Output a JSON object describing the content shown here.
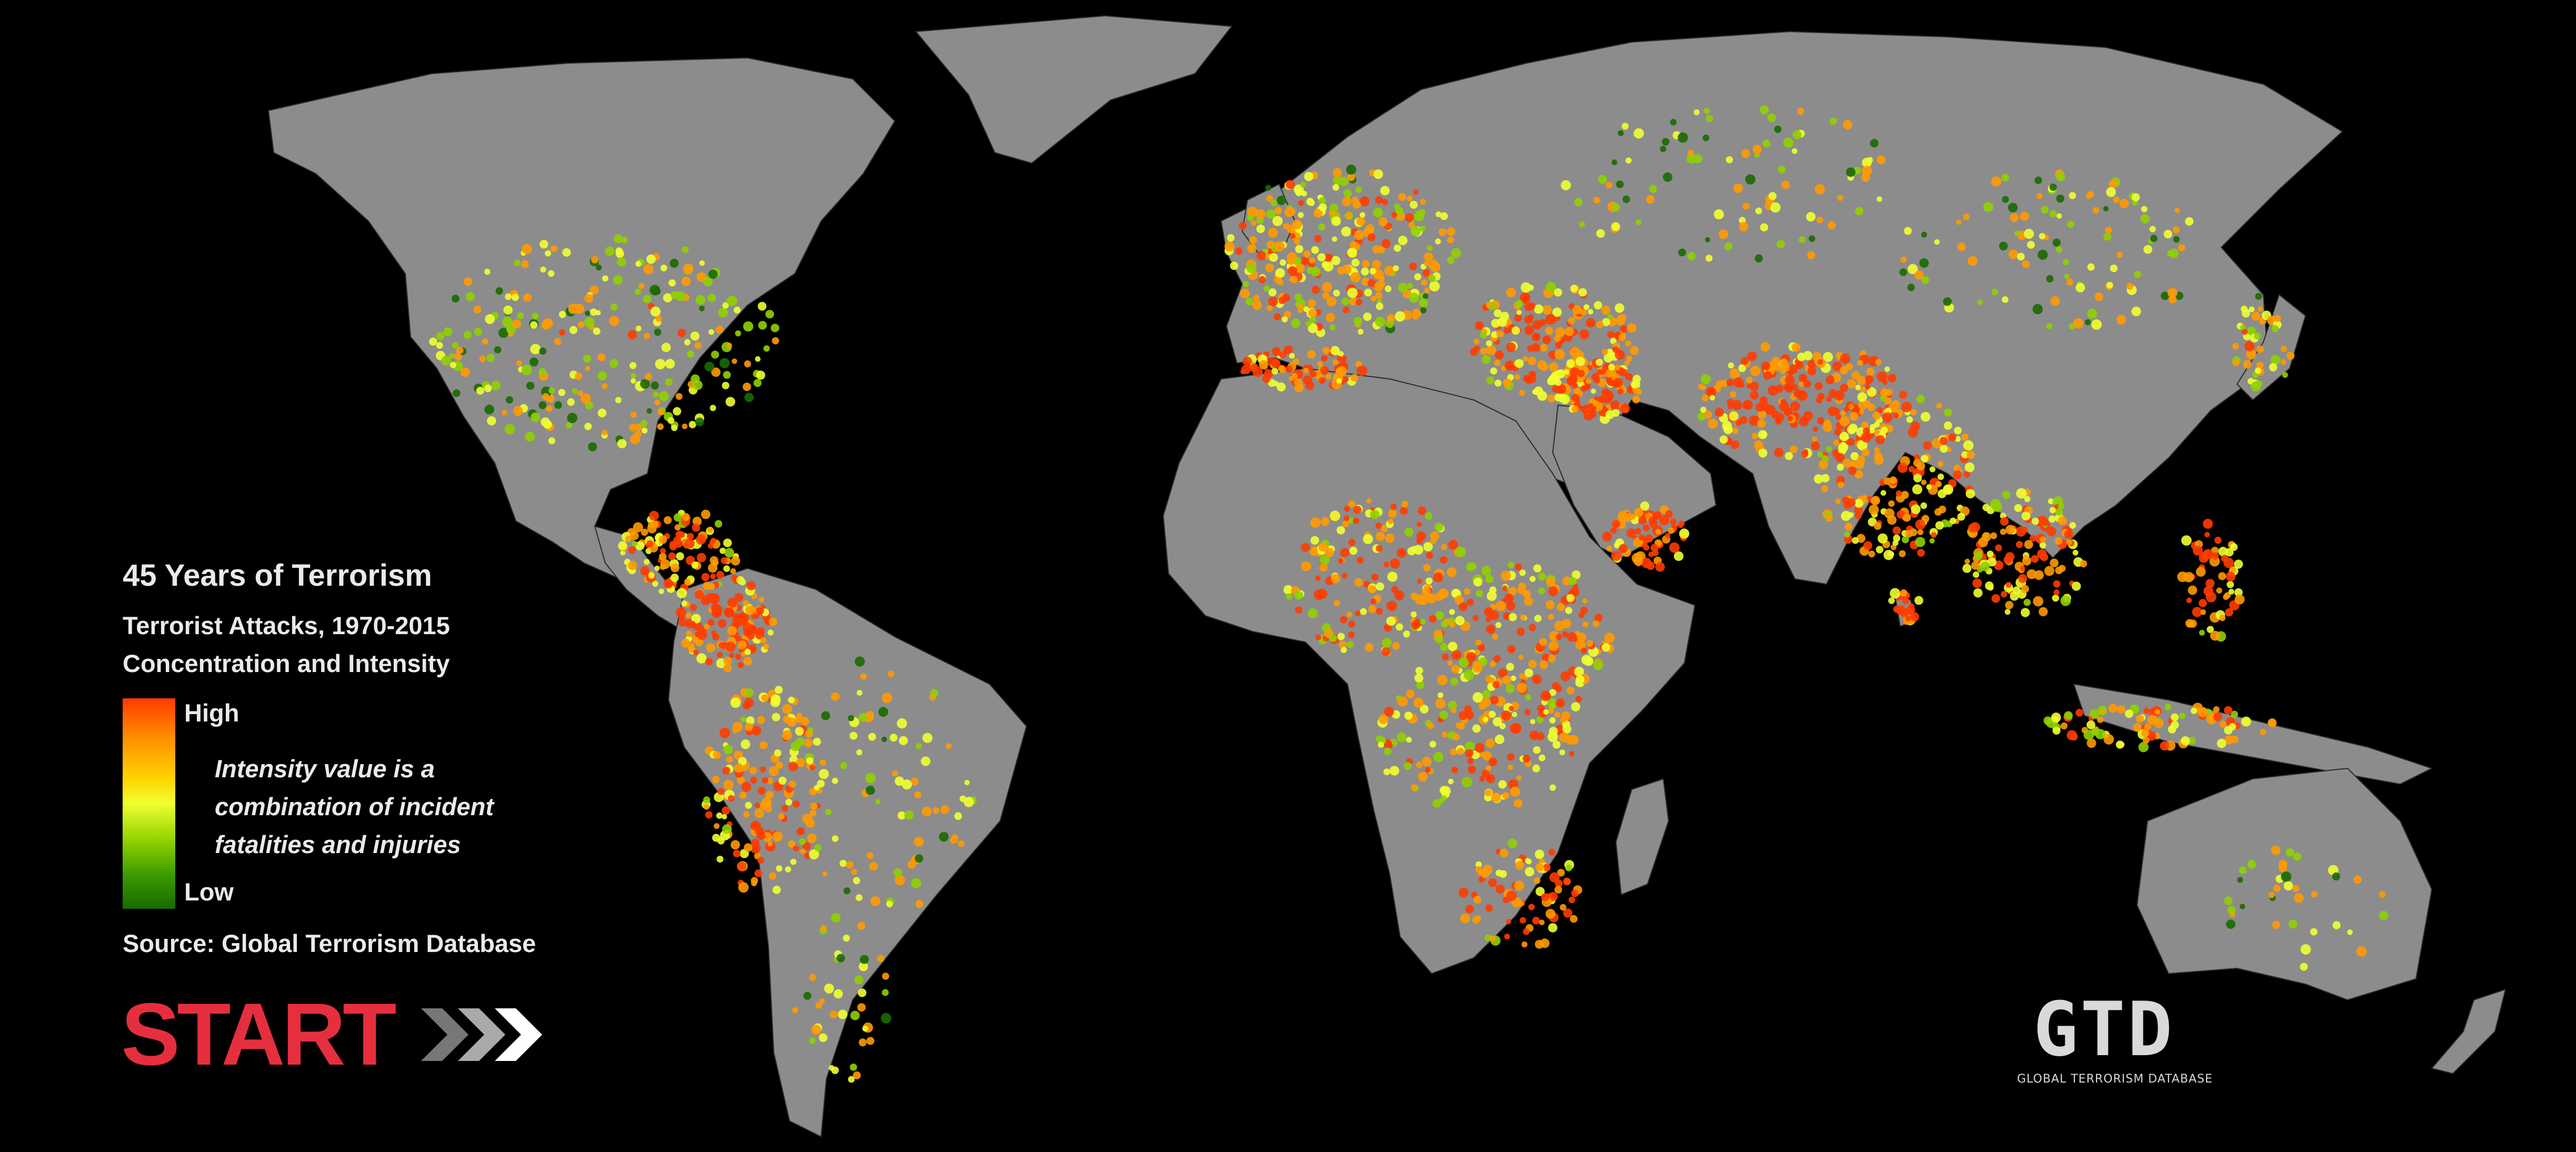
{
  "legend": {
    "title": "45 Years of Terrorism",
    "subtitle_1": "Terrorist Attacks, 1970-2015",
    "subtitle_2": "Concentration and Intensity",
    "high_label": "High",
    "low_label": "Low",
    "note": "Intensity value is a combination of incident fatalities and injuries",
    "source": "Source: Global Terrorism Database"
  },
  "logos": {
    "start": "START",
    "gtd": "GTD",
    "gtd_caption": "GLOBAL TERRORISM DATABASE"
  },
  "colors": {
    "background": "#000000",
    "land": "#8c8c8c",
    "intensity_low": "#1a6a00",
    "intensity_mid": "#f0ff30",
    "intensity_high": "#ff3c00",
    "start_red": "#e52f3e"
  }
}
